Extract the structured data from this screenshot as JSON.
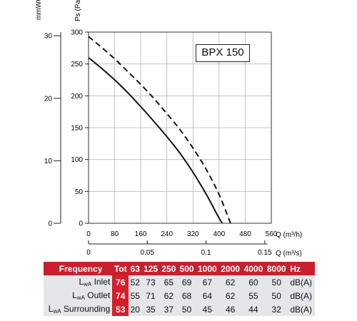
{
  "chart_data": {
    "type": "line",
    "title": "",
    "model": "BPX 150",
    "ylabel_pa": "Ps (Pa)",
    "ylabel_mmwg": "mmWG",
    "xlabel_m3h": "Q (m³/h)",
    "xlabel_m3s": "Q (m³/s)",
    "xlim": [
      0,
      560
    ],
    "ylim": [
      0,
      300
    ],
    "x_ticks": [
      "0",
      "80",
      "160",
      "240",
      "320",
      "400",
      "480",
      "560"
    ],
    "y_ticks": [
      "0",
      "50",
      "100",
      "150",
      "200",
      "250",
      "300"
    ],
    "mmwg_ticks": [
      "0",
      "10",
      "20",
      "30"
    ],
    "m3s_ticks": [
      "0",
      "0.05",
      "0.1",
      "0.15"
    ],
    "grid": true,
    "series": [
      {
        "style": "solid",
        "x": [
          0,
          40,
          80,
          120,
          160,
          200,
          240,
          280,
          320,
          360,
          400,
          410
        ],
        "y": [
          260,
          243,
          225,
          205,
          183,
          160,
          136,
          110,
          80,
          46,
          8,
          0
        ]
      },
      {
        "style": "dashed",
        "x": [
          0,
          40,
          80,
          120,
          160,
          200,
          240,
          280,
          320,
          360,
          400,
          435
        ],
        "y": [
          293,
          276,
          258,
          238,
          218,
          196,
          172,
          147,
          118,
          85,
          45,
          0
        ]
      }
    ]
  },
  "noise_table": {
    "header": [
      "Frequency",
      "Tot",
      "63",
      "125",
      "250",
      "500",
      "1000",
      "2000",
      "4000",
      "8000",
      "Hz"
    ],
    "rows": [
      {
        "label_main": "L",
        "label_sub": "wA",
        "label_rest": " Inlet",
        "tot": "76",
        "values": [
          "52",
          "73",
          "65",
          "69",
          "67",
          "62",
          "60",
          "50"
        ],
        "unit": "dB(A)"
      },
      {
        "label_main": "L",
        "label_sub": "wA",
        "label_rest": " Outlet",
        "tot": "74",
        "values": [
          "55",
          "71",
          "62",
          "68",
          "64",
          "62",
          "55",
          "50"
        ],
        "unit": "dB(A)"
      },
      {
        "label_main": "L",
        "label_sub": "wA",
        "label_rest": " Surrounding",
        "tot": "53",
        "values": [
          "20",
          "35",
          "37",
          "50",
          "45",
          "46",
          "44",
          "32"
        ],
        "unit": "dB(A)"
      }
    ]
  }
}
